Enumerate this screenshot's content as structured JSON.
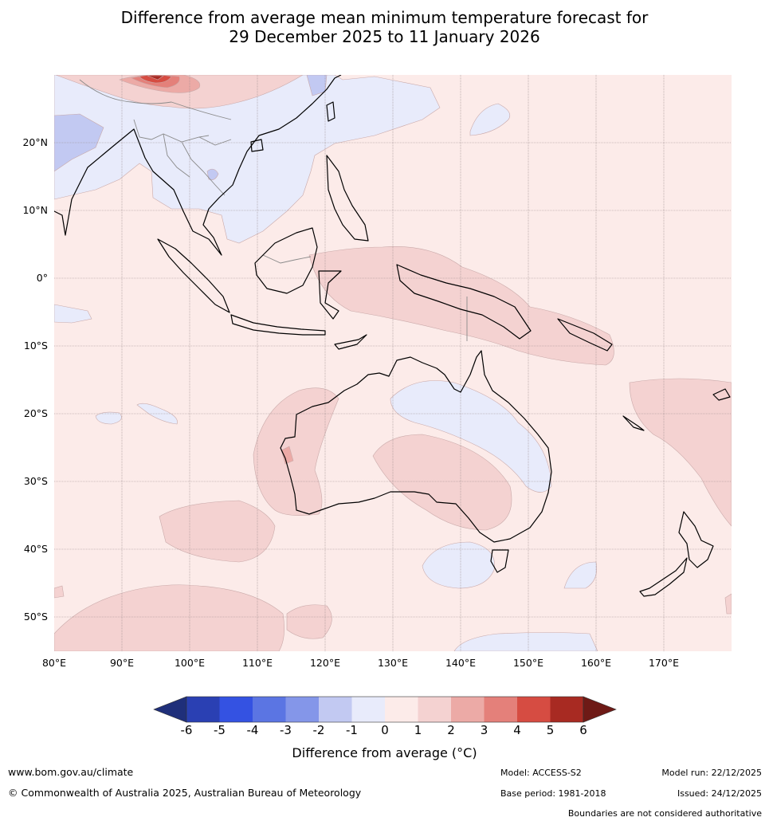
{
  "title": {
    "line1": "Difference from average mean minimum temperature forecast for",
    "line2": "29 December 2025 to 11 January 2026"
  },
  "map": {
    "extent": {
      "lon_min": 80,
      "lon_max": 180,
      "lat_min": -55,
      "lat_max": 30
    },
    "lat_labels": [
      {
        "lat": 20,
        "label": "20°N"
      },
      {
        "lat": 10,
        "label": "10°N"
      },
      {
        "lat": 0,
        "label": "0°"
      },
      {
        "lat": -10,
        "label": "10°S"
      },
      {
        "lat": -20,
        "label": "20°S"
      },
      {
        "lat": -30,
        "label": "30°S"
      },
      {
        "lat": -40,
        "label": "40°S"
      },
      {
        "lat": -50,
        "label": "50°S"
      }
    ],
    "lon_labels": [
      {
        "lon": 80,
        "label": "80°E"
      },
      {
        "lon": 90,
        "label": "90°E"
      },
      {
        "lon": 100,
        "label": "100°E"
      },
      {
        "lon": 110,
        "label": "110°E"
      },
      {
        "lon": 120,
        "label": "120°E"
      },
      {
        "lon": 130,
        "label": "130°E"
      },
      {
        "lon": 140,
        "label": "140°E"
      },
      {
        "lon": 150,
        "label": "150°E"
      },
      {
        "lon": 160,
        "label": "160°E"
      },
      {
        "lon": 170,
        "label": "170°E"
      }
    ],
    "colors": {
      "background": "#fcebe9",
      "gridline": "#9a8c8c",
      "coastline": "#000000",
      "border": "#8a8a8a"
    }
  },
  "colorbar": {
    "colors": [
      "#1f2f7a",
      "#2a40b3",
      "#3452e2",
      "#5b75e3",
      "#8496e9",
      "#c2c9f2",
      "#e8ebfb",
      "#fcebe9",
      "#f4d2d1",
      "#ecaaa6",
      "#e4807a",
      "#d64c42",
      "#a82a22",
      "#6e1a16"
    ],
    "ticks": [
      "-6",
      "-5",
      "-4",
      "-3",
      "-2",
      "-1",
      "0",
      "1",
      "2",
      "3",
      "4",
      "5",
      "6"
    ],
    "label": "Difference from average (°C)"
  },
  "footer": {
    "website": "www.bom.gov.au/climate",
    "copyright": "© Commonwealth of Australia 2025, Australian Bureau of Meteorology",
    "model": "Model: ACCESS-S2",
    "model_run": "Model run: 22/12/2025",
    "base_period": "Base period: 1981-2018",
    "issued": "Issued: 24/12/2025",
    "disclaimer": "Boundaries are not considered authoritative"
  }
}
